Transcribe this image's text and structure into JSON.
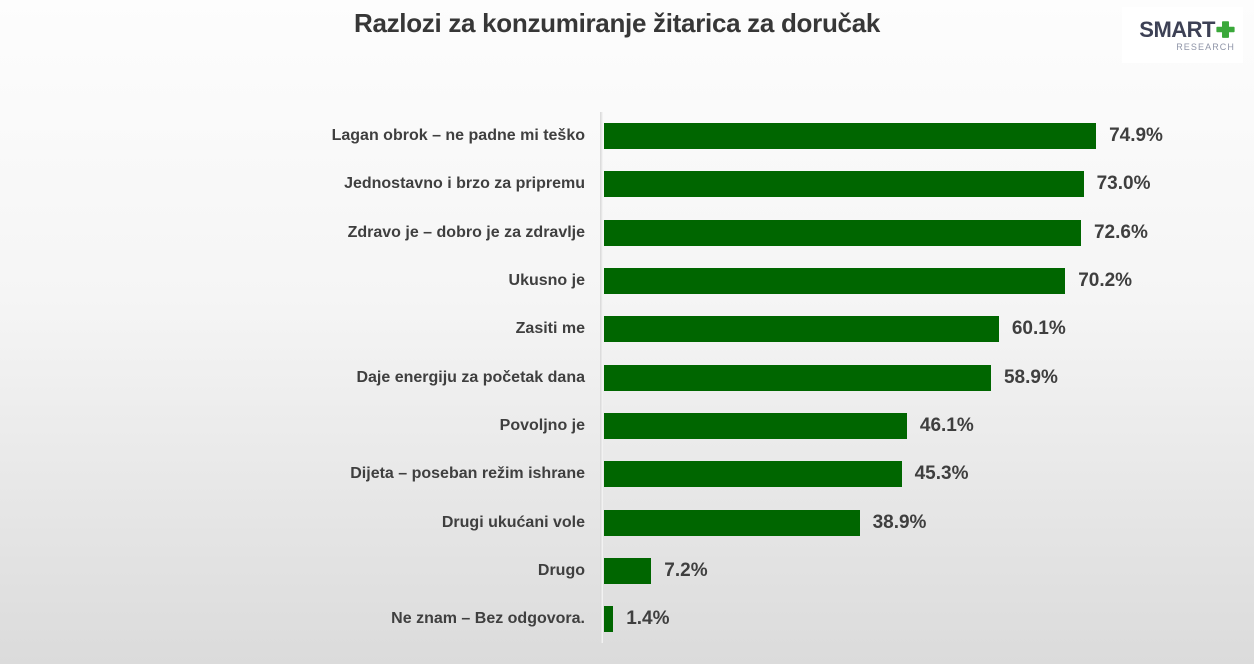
{
  "title": "Razlozi za konzumiranje žitarica za doručak",
  "logo": {
    "brand": "SMART",
    "plus_icon": "plus-cross",
    "subtitle": "RESEARCH"
  },
  "colors": {
    "bar": "#006600",
    "title_text": "#373737",
    "label_text": "#3f3f3f",
    "logo_brand": "#3d4155",
    "logo_plus": "#3aa83a",
    "logo_subtitle": "#8f95a8"
  },
  "chart_data": {
    "type": "bar",
    "orientation": "horizontal",
    "title": "Razlozi za konzumiranje žitarica za doručak",
    "xlabel": "",
    "ylabel": "",
    "xlim": [
      0,
      100
    ],
    "grid": false,
    "legend": false,
    "bar_color": "#006600",
    "categories": [
      "Lagan obrok – ne padne mi teško",
      "Jednostavno i brzo za pripremu",
      "Zdravo je – dobro je za zdravlje",
      "Ukusno je",
      "Zasiti me",
      "Daje energiju za početak dana",
      "Povoljno je",
      "Dijeta – poseban režim ishrane",
      "Drugi ukućani vole",
      "Drugo",
      "Ne znam – Bez odgovora."
    ],
    "values": [
      74.9,
      73.0,
      72.6,
      70.2,
      60.1,
      58.9,
      46.1,
      45.3,
      38.9,
      7.2,
      1.4
    ],
    "value_labels": [
      "74.9%",
      "73.0%",
      "72.6%",
      "70.2%",
      "60.1%",
      "58.9%",
      "46.1%",
      "45.3%",
      "38.9%",
      "7.2%",
      "1.4%"
    ]
  }
}
